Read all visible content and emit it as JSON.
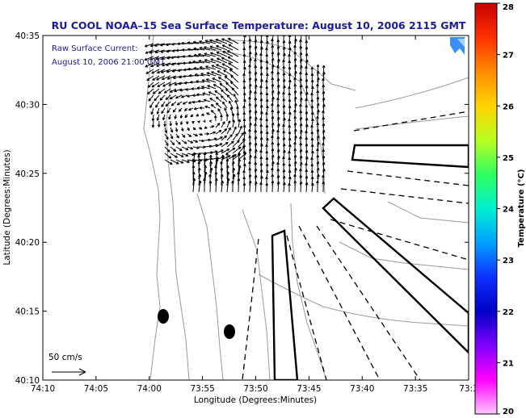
{
  "title": "RU COOL  NOAA–15  Sea Surface Temperature:  August 10, 2006 2115 GMT",
  "overlay": {
    "line1": "Raw Surface Current:",
    "line2": "August 10, 2006 21:00 GMT"
  },
  "scale_label": "50 cm/s",
  "colorbar": {
    "label": "Temperature (°C)",
    "ticks": [
      "28",
      "27",
      "26",
      "25",
      "24",
      "23",
      "22",
      "21",
      "20"
    ],
    "colors": [
      "#c80000",
      "#ff3000",
      "#ff8c00",
      "#ffd400",
      "#b8ff20",
      "#30ff60",
      "#00f0d0",
      "#00a0ff",
      "#1030ff",
      "#0000c8",
      "#8000ff",
      "#ff00ff",
      "#ffc8ff"
    ]
  },
  "logo_icon": "codar-logo-icon",
  "chart_data": {
    "type": "map",
    "xlabel": "Longitude (Degrees:Minutes)",
    "ylabel": "Latitude (Degrees:Minutes)",
    "x_ticks": [
      "74:10",
      "74:05",
      "74:00",
      "73:55",
      "73:50",
      "73:45",
      "73:40",
      "73:35",
      "73:3"
    ],
    "y_ticks": [
      "40:35",
      "40:30",
      "40:25",
      "40:20",
      "40:15",
      "40:10"
    ],
    "xlim": [
      "74:10",
      "73:30"
    ],
    "ylim": [
      "40:10",
      "40:35"
    ],
    "grid": false
  }
}
